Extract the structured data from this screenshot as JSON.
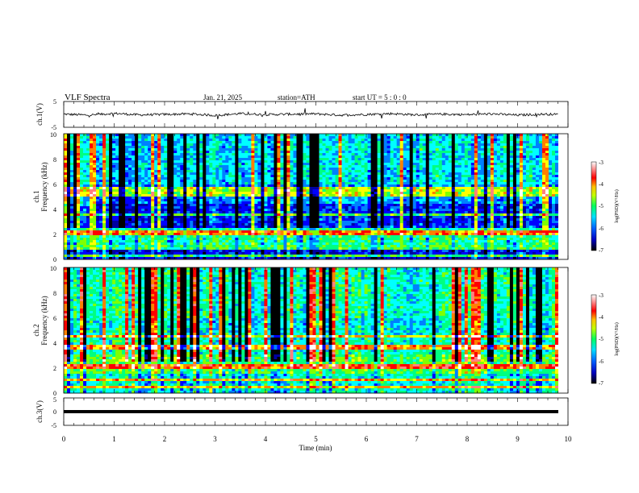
{
  "header": {
    "title": "VLF  Spectra",
    "date": "Jan. 21, 2025",
    "station": "station=ATH",
    "start_ut": "start  UT  =    5  : 0   : 0"
  },
  "chart_data": [
    {
      "type": "line",
      "panel": "ch1_voltage",
      "ylabel": "ch.1(V)",
      "ylim": [
        -5,
        5
      ],
      "yticks": [
        "5",
        "-5"
      ],
      "xlim": [
        0,
        10
      ],
      "x": [
        0,
        0.5,
        1,
        1.5,
        2,
        2.5,
        3,
        3.5,
        4,
        4.5,
        5,
        5.5,
        6,
        6.5,
        7,
        7.5,
        8,
        8.5,
        9,
        9.5,
        9.8
      ],
      "values": [
        0.1,
        -0.3,
        0.4,
        -0.2,
        0.0,
        0.2,
        -0.4,
        0.3,
        -0.1,
        0.1,
        0.2,
        -0.3,
        0.0,
        0.3,
        -0.2,
        0.1,
        -0.1,
        0.2,
        -0.3,
        0.1,
        0.0
      ],
      "color": "#000000"
    },
    {
      "type": "heatmap",
      "panel": "ch1_spectrogram",
      "ylabel": "ch.1",
      "ylabel2": "Frequency (kHz)",
      "ylim": [
        0,
        10
      ],
      "yticks": [
        "0",
        "2",
        "4",
        "6",
        "8",
        "10"
      ],
      "xlim": [
        0,
        9.8
      ],
      "horizontal_bands_khz": [
        0.3,
        0.8,
        1.0,
        2.0,
        2.2,
        3.6,
        5.2,
        5.6
      ],
      "colorbar": {
        "label": "log(PSD)(V²/Hz)",
        "range": [
          -7,
          -3
        ],
        "ticks": [
          "-3",
          "-4",
          "-5",
          "-6",
          "-7"
        ]
      }
    },
    {
      "type": "heatmap",
      "panel": "ch2_spectrogram",
      "ylabel": "ch.2",
      "ylabel2": "Frequency (kHz)",
      "ylim": [
        0,
        10
      ],
      "yticks": [
        "0",
        "2",
        "4",
        "6",
        "8",
        "10"
      ],
      "xlim": [
        0,
        9.8
      ],
      "horizontal_bands_khz": [
        0.5,
        1.0,
        2.0,
        2.2,
        3.5,
        3.7,
        4.5
      ],
      "colorbar": {
        "label": "log(PSD)(V²/Hz)",
        "range": [
          -7,
          -3
        ],
        "ticks": [
          "-3",
          "-4",
          "-5",
          "-6",
          "-7"
        ]
      }
    },
    {
      "type": "line",
      "panel": "ch3_voltage",
      "ylabel": "ch.3(V)",
      "ylim": [
        -5,
        5
      ],
      "yticks": [
        "5",
        "0",
        "-5"
      ],
      "xlim": [
        0,
        10
      ],
      "x": [
        0,
        9.8
      ],
      "values": [
        -1.2,
        -1.2
      ],
      "color": "#000000"
    }
  ],
  "x_axis": {
    "label": "Time  (min)",
    "ticks": [
      "0",
      "1",
      "2",
      "3",
      "4",
      "5",
      "6",
      "7",
      "8",
      "9",
      "10"
    ]
  },
  "colors": {
    "colormap": [
      "#000000",
      "#0000a0",
      "#0000ff",
      "#0080ff",
      "#00ffff",
      "#00ff80",
      "#80ff00",
      "#ffff00",
      "#ff8000",
      "#ff0000",
      "#ff8080",
      "#ffffff"
    ]
  }
}
